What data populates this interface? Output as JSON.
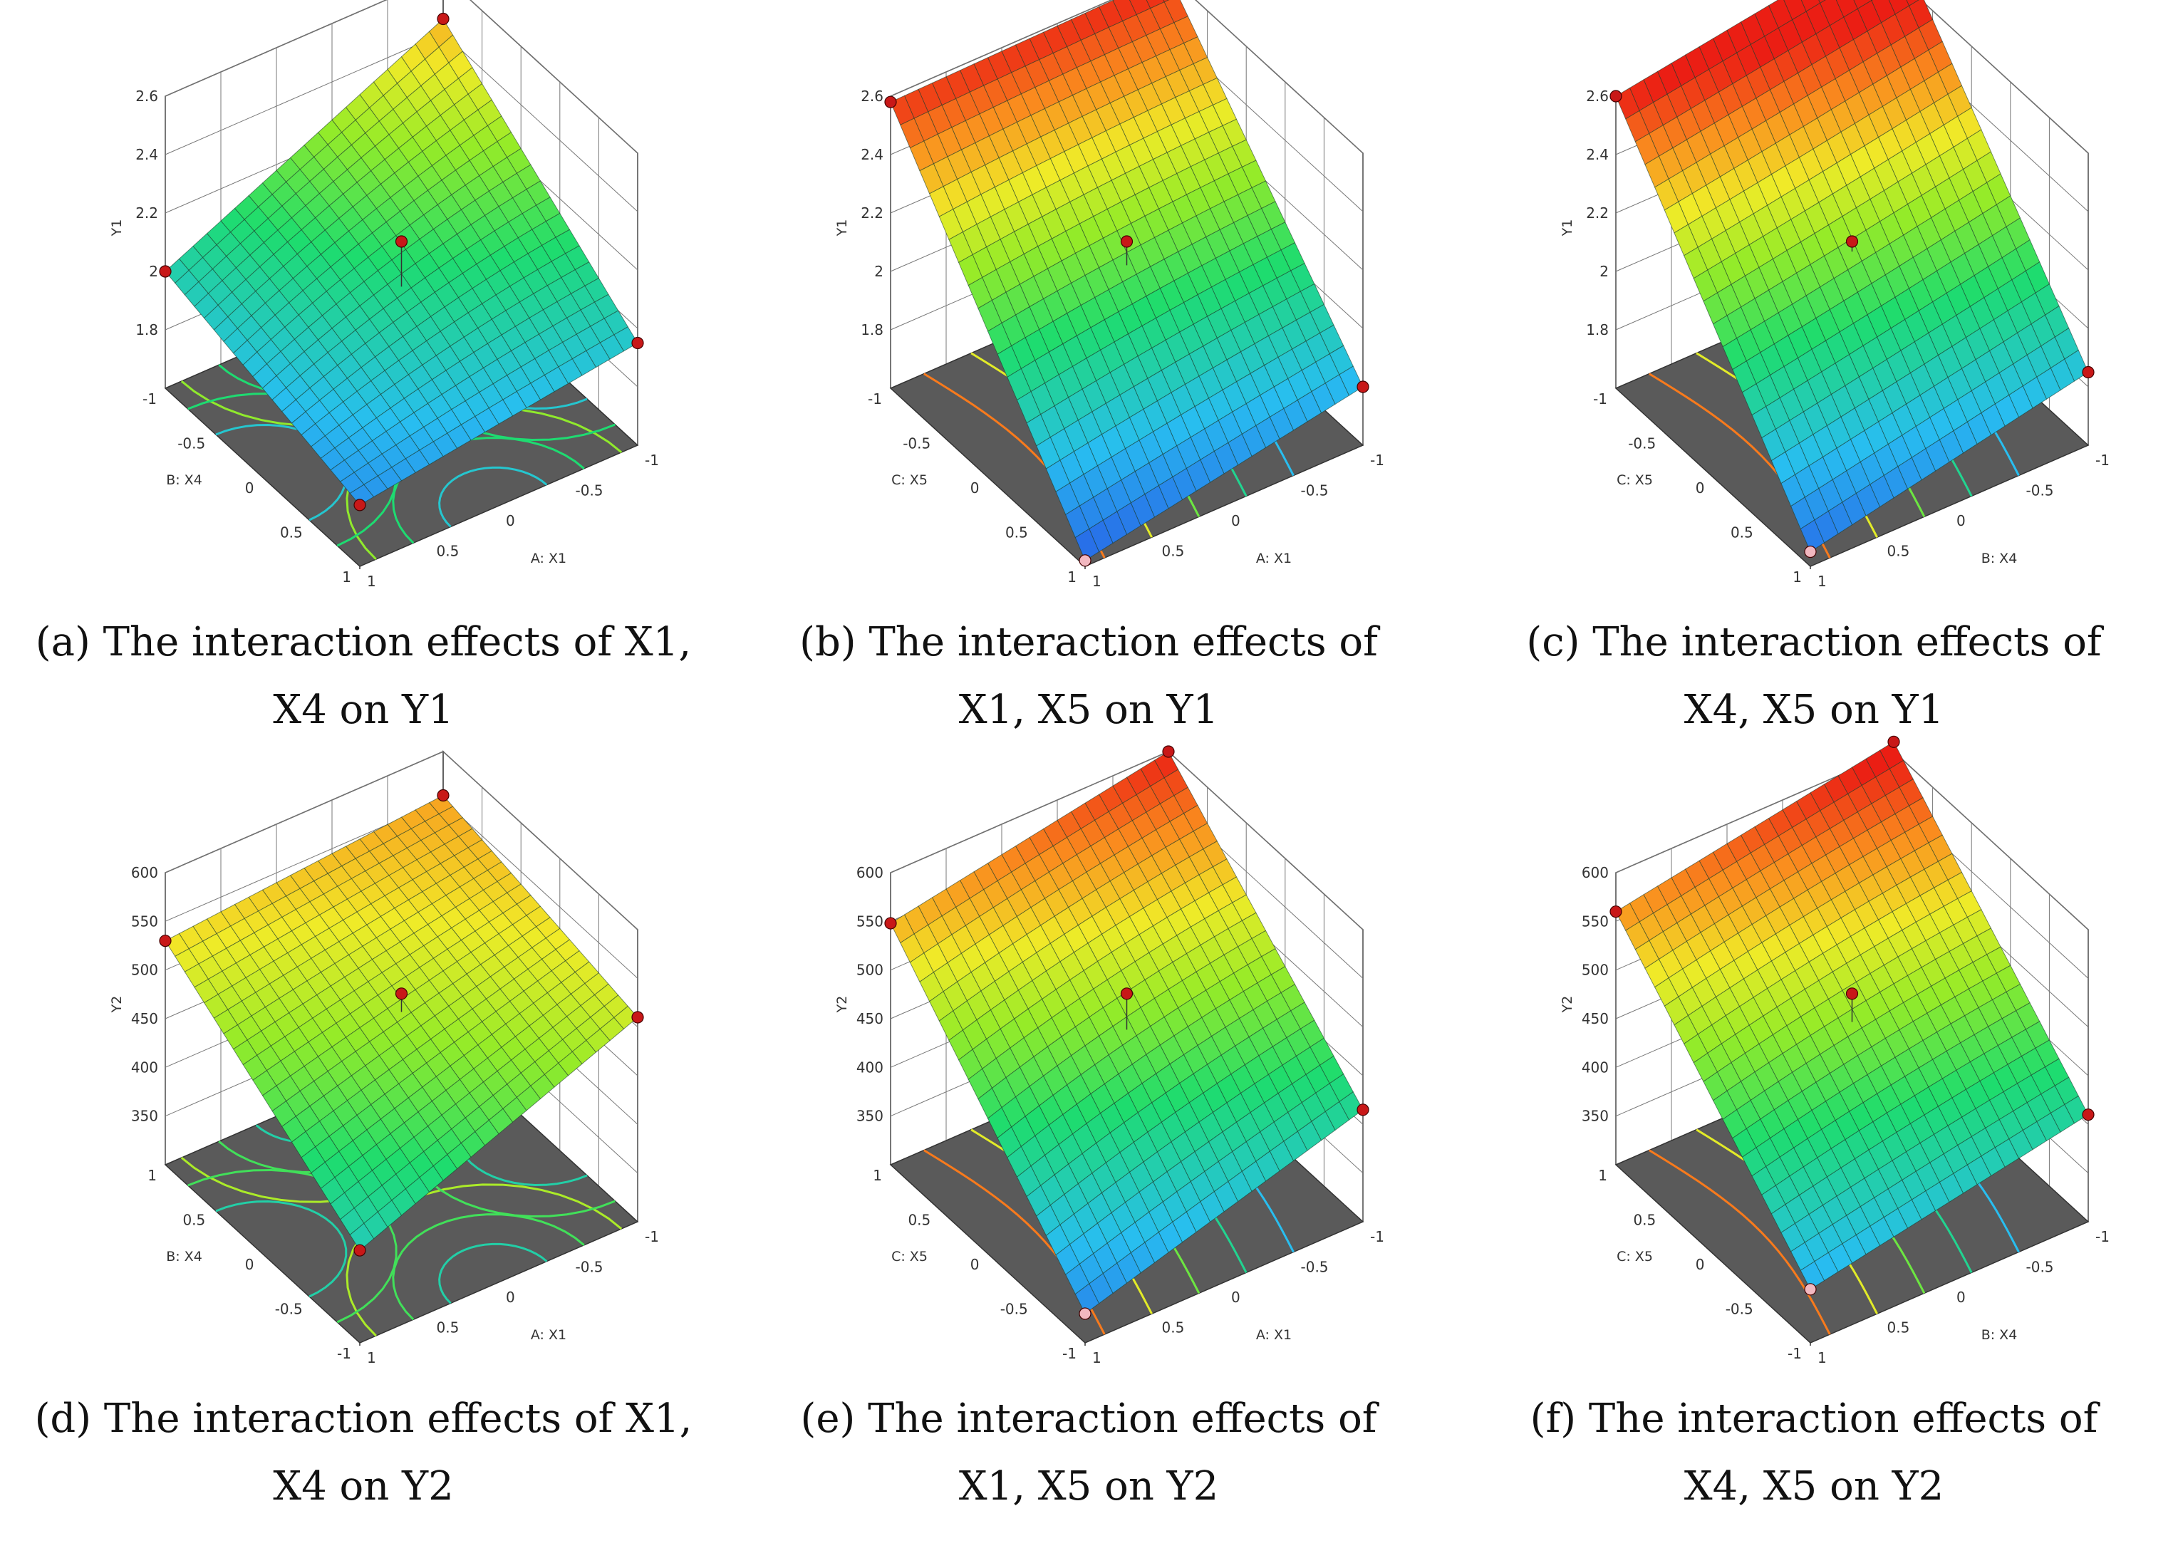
{
  "chart_data": [
    {
      "type": "surface3d",
      "panel": "a",
      "caption_lines": [
        "(a) The interaction effects of X1,",
        "X4 on Y1"
      ],
      "caption_bold": "a",
      "zlabel": "Y1",
      "xlabel": "A: X1",
      "ylabel": "B: X4",
      "z_ticks": [
        "1.8",
        "2",
        "2.2",
        "2.4",
        "2.6"
      ],
      "x_ticks": [
        "-1",
        "-0.5",
        "0",
        "0.5",
        "1"
      ],
      "y_ticks": [
        "-1",
        "-0.5",
        "0",
        "0.5",
        "1"
      ],
      "zlim": [
        1.6,
        2.6
      ],
      "corner_values": {
        "front": 1.81,
        "left": 2.0,
        "right": 1.95,
        "back": 2.45
      },
      "center_point": 2.2,
      "colormap": "blue-green-yellow-red",
      "color_range": [
        1.7,
        2.6
      ],
      "floor_contours": "saddle"
    },
    {
      "type": "surface3d",
      "panel": "b",
      "caption_lines": [
        "(b) The interaction effects of",
        "X1, X5 on Y1"
      ],
      "caption_bold": "b",
      "zlabel": "Y1",
      "xlabel": "A: X1",
      "ylabel": "C: X5",
      "z_ticks": [
        "1.8",
        "2",
        "2.2",
        "2.4",
        "2.6"
      ],
      "x_ticks": [
        "-1",
        "-0.5",
        "0",
        "0.5",
        "1"
      ],
      "y_ticks": [
        "-1",
        "-0.5",
        "0",
        "0.5",
        "1"
      ],
      "zlim": [
        1.6,
        2.6
      ],
      "corner_values": {
        "front": 1.62,
        "left": 2.58,
        "right": 1.8,
        "back": 2.6
      },
      "center_point": 2.2,
      "colormap": "blue-green-yellow-red",
      "color_range": [
        1.6,
        2.6
      ],
      "floor_contours": "bands"
    },
    {
      "type": "surface3d",
      "panel": "c",
      "caption_lines": [
        "(c) The interaction effects of",
        "X4, X5 on Y1"
      ],
      "caption_bold": "c",
      "zlabel": "Y1",
      "xlabel": "B: X4",
      "ylabel": "C: X5",
      "z_ticks": [
        "1.8",
        "2",
        "2.2",
        "2.4",
        "2.6"
      ],
      "x_ticks": [
        "-1",
        "-0.5",
        "0",
        "0.5",
        "1"
      ],
      "y_ticks": [
        "-1",
        "-0.5",
        "0",
        "0.5",
        "1"
      ],
      "zlim": [
        1.6,
        2.6
      ],
      "corner_values": {
        "front": 1.65,
        "left": 2.6,
        "right": 1.85,
        "back": 2.75
      },
      "center_point": 2.2,
      "colormap": "blue-green-yellow-red",
      "color_range": [
        1.6,
        2.6
      ],
      "floor_contours": "bands"
    },
    {
      "type": "surface3d",
      "panel": "d",
      "caption_lines": [
        "(d) The interaction effects of X1,",
        "X4 on Y2"
      ],
      "caption_bold": "d",
      "zlabel": "Y2",
      "xlabel": "A: X1",
      "ylabel": "B: X4",
      "z_ticks": [
        "350",
        "400",
        "450",
        "500",
        "550",
        "600"
      ],
      "x_ticks": [
        "-1",
        "-0.5",
        "0",
        "0.5",
        "1"
      ],
      "y_ticks": [
        "1",
        "0.5",
        "0",
        "-0.5",
        "-1"
      ],
      "zlim": [
        300,
        600
      ],
      "corner_values": {
        "front": 395,
        "left": 530,
        "right": 510,
        "back": 555
      },
      "center_point": 505,
      "colormap": "blue-green-yellow-red",
      "color_range": [
        300,
        600
      ],
      "floor_contours": "saddle"
    },
    {
      "type": "surface3d",
      "panel": "e",
      "caption_lines": [
        "(e) The interaction effects of",
        "X1, X5 on Y2"
      ],
      "caption_bold": "e",
      "zlabel": "Y2",
      "xlabel": "A: X1",
      "ylabel": "C: X5",
      "z_ticks": [
        "350",
        "400",
        "450",
        "500",
        "550",
        "600"
      ],
      "x_ticks": [
        "-1",
        "-0.5",
        "0",
        "0.5",
        "1"
      ],
      "y_ticks": [
        "1",
        "0.5",
        "0",
        "-0.5",
        "-1"
      ],
      "zlim": [
        300,
        600
      ],
      "corner_values": {
        "front": 330,
        "left": 548,
        "right": 415,
        "back": 600
      },
      "center_point": 505,
      "colormap": "blue-green-yellow-red",
      "color_range": [
        300,
        600
      ],
      "floor_contours": "bands"
    },
    {
      "type": "surface3d",
      "panel": "f",
      "caption_lines": [
        "(f) The interaction effects of",
        "X4, X5 on Y2"
      ],
      "caption_bold": "f",
      "zlabel": "Y2",
      "xlabel": "B: X4",
      "ylabel": "C: X5",
      "z_ticks": [
        "350",
        "400",
        "450",
        "500",
        "550",
        "600"
      ],
      "x_ticks": [
        "-1",
        "-0.5",
        "0",
        "0.5",
        "1"
      ],
      "y_ticks": [
        "1",
        "0.5",
        "0",
        "-0.5",
        "-1"
      ],
      "zlim": [
        300,
        600
      ],
      "corner_values": {
        "front": 355,
        "left": 560,
        "right": 410,
        "back": 610
      },
      "center_point": 505,
      "colormap": "blue-green-yellow-red",
      "color_range": [
        300,
        600
      ],
      "floor_contours": "bands"
    }
  ]
}
